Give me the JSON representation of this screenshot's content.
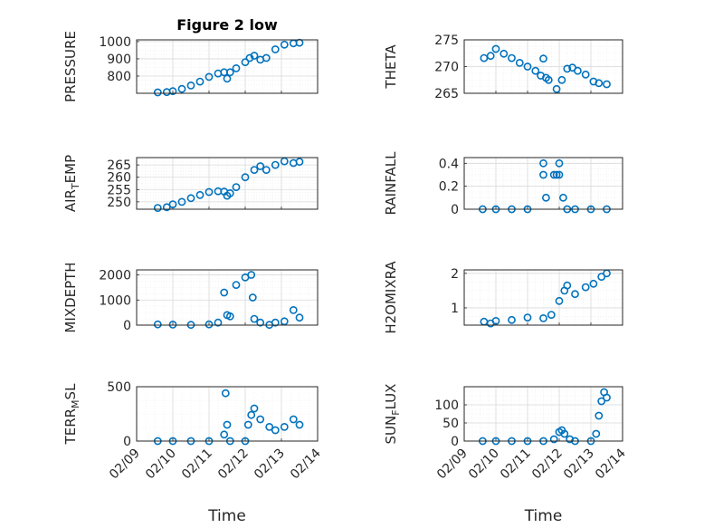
{
  "colors": {
    "marker": "#0072BD",
    "axis": "#262626",
    "grid": "#d9d9d9",
    "background": "#ffffff"
  },
  "chart_data": {
    "type": "scatter",
    "title": "Figure 2 low",
    "marker": "circle-open",
    "grid": true,
    "minor_grid": true,
    "x_ticks": [
      "02/09",
      "02/10",
      "02/11",
      "02/12",
      "02/13",
      "02/14"
    ],
    "xlabel": "Time",
    "xlim": [
      "02/09",
      "02/14"
    ],
    "panels": [
      {
        "ylabel": "PRESSURE",
        "ylim": [
          700,
          1010
        ],
        "yticks": [
          800,
          900,
          1000
        ],
        "x": [
          "02/09 14:00",
          "02/09 20:00",
          "02/10 00:00",
          "02/10 06:00",
          "02/10 12:00",
          "02/10 18:00",
          "02/11 00:00",
          "02/11 06:00",
          "02/11 10:00",
          "02/11 12:00",
          "02/11 14:00",
          "02/11 18:00",
          "02/12 00:00",
          "02/12 03:00",
          "02/12 06:00",
          "02/12 10:00",
          "02/12 14:00",
          "02/12 20:00",
          "02/13 02:00",
          "02/13 08:00",
          "02/13 12:00"
        ],
        "y": [
          705,
          707,
          712,
          725,
          745,
          768,
          795,
          815,
          822,
          785,
          822,
          845,
          880,
          905,
          918,
          895,
          905,
          955,
          982,
          990,
          993
        ]
      },
      {
        "ylabel": "THETA",
        "ylim": [
          265,
          275
        ],
        "yticks": [
          265,
          270,
          275
        ],
        "x": [
          "02/09 15:00",
          "02/09 20:00",
          "02/10 00:00",
          "02/10 06:00",
          "02/10 12:00",
          "02/10 18:00",
          "02/11 00:00",
          "02/11 06:00",
          "02/11 10:00",
          "02/11 12:00",
          "02/11 14:00",
          "02/11 16:00",
          "02/11 22:00",
          "02/12 02:00",
          "02/12 06:00",
          "02/12 10:00",
          "02/12 14:00",
          "02/12 20:00",
          "02/13 02:00",
          "02/13 06:00",
          "02/13 12:00"
        ],
        "y": [
          271.6,
          272.0,
          273.3,
          272.4,
          271.6,
          270.7,
          270.0,
          269.2,
          268.3,
          271.5,
          267.9,
          267.5,
          265.8,
          267.5,
          269.6,
          269.8,
          269.2,
          268.5,
          267.2,
          266.9,
          266.7
        ]
      },
      {
        "ylabel": "AIR_TEMP",
        "ylim": [
          247,
          268
        ],
        "yticks": [
          250,
          255,
          260,
          265
        ],
        "x": [
          "02/09 14:00",
          "02/09 20:00",
          "02/10 00:00",
          "02/10 06:00",
          "02/10 12:00",
          "02/10 18:00",
          "02/11 00:00",
          "02/11 06:00",
          "02/11 10:00",
          "02/11 12:00",
          "02/11 14:00",
          "02/11 18:00",
          "02/12 00:00",
          "02/12 06:00",
          "02/12 10:00",
          "02/12 14:00",
          "02/12 20:00",
          "02/13 02:00",
          "02/13 08:00",
          "02/13 12:00"
        ],
        "y": [
          247.5,
          247.8,
          249.0,
          250.0,
          251.5,
          252.8,
          254.0,
          254.3,
          254.2,
          252.5,
          253.5,
          256.0,
          260.0,
          263.0,
          264.5,
          263.0,
          265.0,
          266.5,
          265.8,
          266.3
        ]
      },
      {
        "ylabel": "RAINFALL",
        "ylim": [
          0,
          0.45
        ],
        "yticks": [
          0,
          0.2,
          0.4
        ],
        "x": [
          "02/09 14:00",
          "02/10 00:00",
          "02/10 12:00",
          "02/11 00:00",
          "02/11 12:00",
          "02/11 12:00",
          "02/11 14:00",
          "02/11 20:00",
          "02/11 22:00",
          "02/12 00:00",
          "02/12 00:00",
          "02/12 03:00",
          "02/12 06:00",
          "02/12 12:00",
          "02/13 00:00",
          "02/13 12:00"
        ],
        "y": [
          0,
          0,
          0,
          0,
          0.4,
          0.3,
          0.1,
          0.3,
          0.3,
          0.4,
          0.3,
          0.1,
          0,
          0,
          0,
          0
        ]
      },
      {
        "ylabel": "MIXDEPTH",
        "ylim": [
          0,
          2200
        ],
        "yticks": [
          0,
          1000,
          2000
        ],
        "x": [
          "02/09 14:00",
          "02/10 00:00",
          "02/10 12:00",
          "02/11 00:00",
          "02/11 06:00",
          "02/11 10:00",
          "02/11 12:00",
          "02/11 14:00",
          "02/11 18:00",
          "02/12 00:00",
          "02/12 04:00",
          "02/12 05:00",
          "02/12 06:00",
          "02/12 10:00",
          "02/12 16:00",
          "02/12 20:00",
          "02/13 02:00",
          "02/13 08:00",
          "02/13 12:00"
        ],
        "y": [
          30,
          20,
          10,
          30,
          100,
          1300,
          400,
          350,
          1600,
          1900,
          2000,
          1100,
          250,
          100,
          10,
          100,
          150,
          600,
          300
        ]
      },
      {
        "ylabel": "H2OMIXRA",
        "ylim": [
          0.5,
          2.1
        ],
        "yticks": [
          1,
          2
        ],
        "x": [
          "02/09 15:00",
          "02/09 20:00",
          "02/10 00:00",
          "02/10 12:00",
          "02/11 00:00",
          "02/11 12:00",
          "02/11 18:00",
          "02/12 00:00",
          "02/12 04:00",
          "02/12 06:00",
          "02/12 12:00",
          "02/12 20:00",
          "02/13 02:00",
          "02/13 08:00",
          "02/13 12:00"
        ],
        "y": [
          0.6,
          0.55,
          0.62,
          0.65,
          0.72,
          0.7,
          0.8,
          1.2,
          1.5,
          1.65,
          1.4,
          1.6,
          1.7,
          1.9,
          2.0
        ]
      },
      {
        "ylabel": "TERR_MSL",
        "ylim": [
          0,
          500
        ],
        "yticks": [
          0,
          500
        ],
        "x": [
          "02/09 14:00",
          "02/10 00:00",
          "02/10 12:00",
          "02/11 00:00",
          "02/11 10:00",
          "02/11 11:00",
          "02/11 12:00",
          "02/11 14:00",
          "02/12 00:00",
          "02/12 02:00",
          "02/12 04:00",
          "02/12 06:00",
          "02/12 10:00",
          "02/12 16:00",
          "02/12 20:00",
          "02/13 02:00",
          "02/13 08:00",
          "02/13 12:00"
        ],
        "y": [
          0,
          0,
          0,
          0,
          60,
          440,
          150,
          0,
          0,
          150,
          240,
          300,
          200,
          130,
          100,
          130,
          200,
          150
        ]
      },
      {
        "ylabel": "SUN_FLUX",
        "ylim": [
          0,
          150
        ],
        "yticks": [
          0,
          50,
          100
        ],
        "x": [
          "02/09 14:00",
          "02/10 00:00",
          "02/10 12:00",
          "02/11 00:00",
          "02/11 12:00",
          "02/11 20:00",
          "02/12 00:00",
          "02/12 02:00",
          "02/12 04:00",
          "02/12 08:00",
          "02/12 12:00",
          "02/13 00:00",
          "02/13 04:00",
          "02/13 06:00",
          "02/13 08:00",
          "02/13 10:00",
          "02/13 12:00"
        ],
        "y": [
          0,
          0,
          0,
          0,
          0,
          5,
          25,
          30,
          20,
          5,
          0,
          0,
          20,
          70,
          110,
          135,
          120
        ]
      }
    ]
  }
}
